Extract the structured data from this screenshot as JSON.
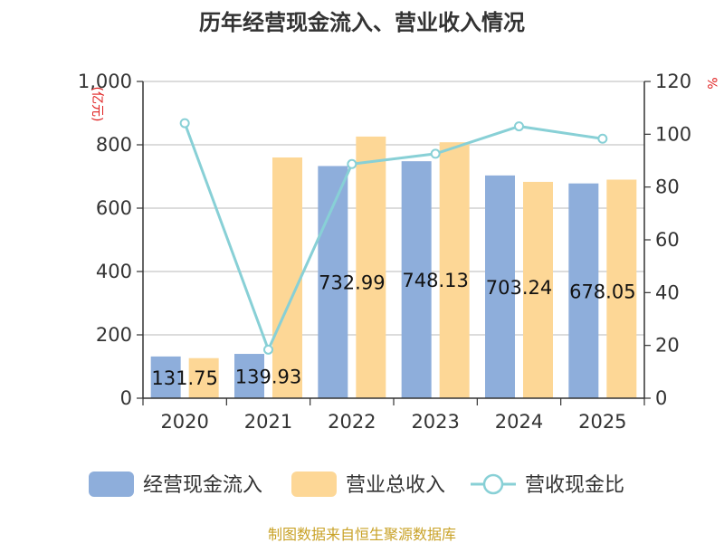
{
  "chart_data": {
    "type": "bar",
    "title": "历年经营现金流入、营业收入情况",
    "categories": [
      "2020",
      "2021",
      "2022",
      "2023",
      "2024",
      "2025"
    ],
    "left_axis": {
      "unit": "(亿元)",
      "ylim": [
        0,
        1000
      ],
      "ticks": [
        "0",
        "200",
        "400",
        "600",
        "800",
        "1,000"
      ]
    },
    "right_axis": {
      "unit": "%",
      "ylim": [
        0,
        120
      ],
      "ticks": [
        "0",
        "20",
        "40",
        "60",
        "80",
        "100",
        "120"
      ]
    },
    "series": [
      {
        "name": "经营现金流入",
        "kind": "bar",
        "axis": "left",
        "color": "#8eaedb",
        "values": [
          131.75,
          139.93,
          732.99,
          748.13,
          703.24,
          678.05
        ]
      },
      {
        "name": "营业总收入",
        "kind": "bar",
        "axis": "left",
        "color": "#fdd796",
        "values": [
          126.5,
          760.0,
          826.0,
          808.0,
          683.0,
          690.0
        ]
      },
      {
        "name": "营收现金比",
        "kind": "line",
        "axis": "right",
        "color": "#88d0d6",
        "values": [
          104.2,
          18.4,
          88.7,
          92.6,
          103.0,
          98.3
        ]
      }
    ],
    "data_labels": [
      "131.75",
      "139.93",
      "732.99",
      "748.13",
      "703.24",
      "678.05"
    ],
    "grid": true,
    "legend": "bottom"
  },
  "source_text": "制图数据来自恒生聚源数据库"
}
